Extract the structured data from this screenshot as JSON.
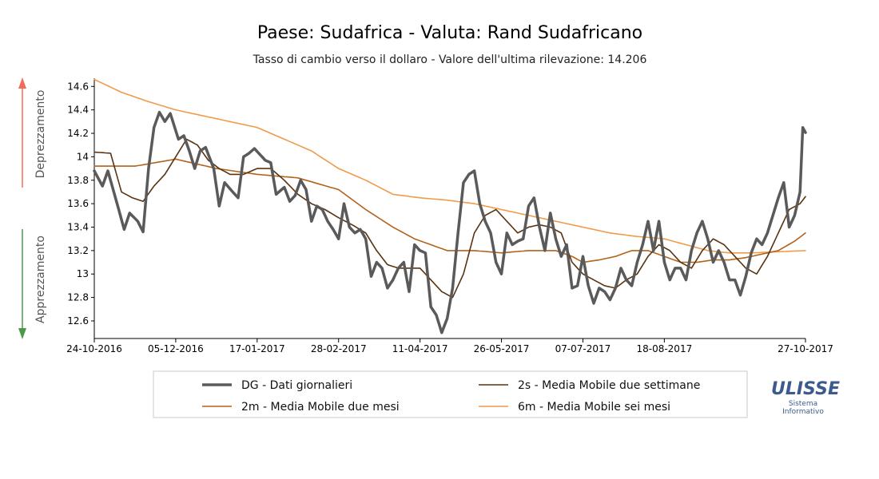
{
  "chart_data": {
    "type": "line",
    "title": "Paese: Sudafrica - Valuta: Rand Sudafricano",
    "subtitle": "Tasso di cambio verso il dollaro - Valore dell'ultima rilevazione: 14.206",
    "ylim": [
      12.45,
      14.67
    ],
    "y_ticks": [
      "14.6",
      "14.4",
      "14.2",
      "14",
      "13.8",
      "13.6",
      "13.4",
      "13.2",
      "13",
      "12.8",
      "12.6"
    ],
    "y_tick_values": [
      14.6,
      14.4,
      14.2,
      14.0,
      13.8,
      13.6,
      13.4,
      13.2,
      13.0,
      12.8,
      12.6
    ],
    "x_ticks": [
      "24-10-2016",
      "05-12-2016",
      "17-01-2017",
      "28-02-2017",
      "11-04-2017",
      "26-05-2017",
      "07-07-2017",
      "18-08-2017",
      "27-10-2017"
    ],
    "x_tick_index": [
      0,
      30,
      60,
      90,
      120,
      150,
      180,
      210,
      262
    ],
    "x_start": "24-10-2016",
    "x_end": "27-10-2017",
    "n_points": 263,
    "series": [
      {
        "key": "dg",
        "name": "DG - Dati giornalieri",
        "color": "#5a5a5a",
        "width": 3.5,
        "anchors": [
          [
            0,
            13.88
          ],
          [
            3,
            13.75
          ],
          [
            5,
            13.88
          ],
          [
            9,
            13.55
          ],
          [
            11,
            13.38
          ],
          [
            13,
            13.52
          ],
          [
            16,
            13.45
          ],
          [
            18,
            13.36
          ],
          [
            20,
            13.9
          ],
          [
            22,
            14.25
          ],
          [
            24,
            14.38
          ],
          [
            26,
            14.3
          ],
          [
            28,
            14.37
          ],
          [
            31,
            14.15
          ],
          [
            33,
            14.18
          ],
          [
            35,
            14.05
          ],
          [
            37,
            13.9
          ],
          [
            39,
            14.05
          ],
          [
            41,
            14.08
          ],
          [
            44,
            13.9
          ],
          [
            46,
            13.58
          ],
          [
            48,
            13.78
          ],
          [
            51,
            13.7
          ],
          [
            53,
            13.65
          ],
          [
            55,
            14.0
          ],
          [
            57,
            14.03
          ],
          [
            59,
            14.07
          ],
          [
            61,
            14.02
          ],
          [
            63,
            13.97
          ],
          [
            65,
            13.95
          ],
          [
            67,
            13.68
          ],
          [
            70,
            13.74
          ],
          [
            72,
            13.62
          ],
          [
            74,
            13.67
          ],
          [
            76,
            13.8
          ],
          [
            78,
            13.72
          ],
          [
            80,
            13.45
          ],
          [
            82,
            13.58
          ],
          [
            84,
            13.55
          ],
          [
            86,
            13.45
          ],
          [
            88,
            13.38
          ],
          [
            90,
            13.3
          ],
          [
            92,
            13.6
          ],
          [
            94,
            13.4
          ],
          [
            96,
            13.35
          ],
          [
            98,
            13.38
          ],
          [
            100,
            13.3
          ],
          [
            102,
            12.98
          ],
          [
            104,
            13.1
          ],
          [
            106,
            13.05
          ],
          [
            108,
            12.88
          ],
          [
            110,
            12.95
          ],
          [
            112,
            13.05
          ],
          [
            114,
            13.1
          ],
          [
            116,
            12.85
          ],
          [
            118,
            13.25
          ],
          [
            120,
            13.2
          ],
          [
            122,
            13.18
          ],
          [
            124,
            12.72
          ],
          [
            126,
            12.65
          ],
          [
            128,
            12.5
          ],
          [
            130,
            12.62
          ],
          [
            132,
            12.88
          ],
          [
            134,
            13.35
          ],
          [
            136,
            13.78
          ],
          [
            138,
            13.85
          ],
          [
            140,
            13.88
          ],
          [
            142,
            13.6
          ],
          [
            144,
            13.45
          ],
          [
            146,
            13.35
          ],
          [
            148,
            13.1
          ],
          [
            150,
            13.0
          ],
          [
            152,
            13.35
          ],
          [
            154,
            13.25
          ],
          [
            156,
            13.28
          ],
          [
            158,
            13.3
          ],
          [
            160,
            13.58
          ],
          [
            162,
            13.65
          ],
          [
            164,
            13.4
          ],
          [
            166,
            13.2
          ],
          [
            168,
            13.52
          ],
          [
            170,
            13.3
          ],
          [
            172,
            13.15
          ],
          [
            174,
            13.25
          ],
          [
            176,
            12.88
          ],
          [
            178,
            12.9
          ],
          [
            180,
            13.15
          ],
          [
            182,
            12.9
          ],
          [
            184,
            12.75
          ],
          [
            186,
            12.88
          ],
          [
            188,
            12.85
          ],
          [
            190,
            12.78
          ],
          [
            192,
            12.88
          ],
          [
            194,
            13.05
          ],
          [
            196,
            12.95
          ],
          [
            198,
            12.9
          ],
          [
            200,
            13.1
          ],
          [
            202,
            13.25
          ],
          [
            204,
            13.45
          ],
          [
            206,
            13.2
          ],
          [
            208,
            13.45
          ],
          [
            210,
            13.1
          ],
          [
            212,
            12.95
          ],
          [
            214,
            13.05
          ],
          [
            216,
            13.05
          ],
          [
            218,
            12.95
          ],
          [
            220,
            13.2
          ],
          [
            222,
            13.35
          ],
          [
            224,
            13.45
          ],
          [
            226,
            13.3
          ],
          [
            228,
            13.1
          ],
          [
            230,
            13.2
          ],
          [
            232,
            13.1
          ],
          [
            234,
            12.95
          ],
          [
            236,
            12.95
          ],
          [
            238,
            12.82
          ],
          [
            240,
            12.98
          ],
          [
            242,
            13.18
          ],
          [
            244,
            13.3
          ],
          [
            246,
            13.25
          ],
          [
            248,
            13.35
          ],
          [
            250,
            13.5
          ],
          [
            252,
            13.65
          ],
          [
            254,
            13.78
          ],
          [
            256,
            13.4
          ],
          [
            258,
            13.5
          ],
          [
            260,
            13.7
          ],
          [
            261,
            14.25
          ],
          [
            262,
            14.206
          ]
        ]
      },
      {
        "key": "ma2s",
        "name": "2s - Media Mobile due settimane",
        "color": "#5a3310",
        "width": 1.6,
        "anchors": [
          [
            0,
            14.04
          ],
          [
            6,
            14.03
          ],
          [
            10,
            13.7
          ],
          [
            14,
            13.65
          ],
          [
            18,
            13.62
          ],
          [
            22,
            13.75
          ],
          [
            26,
            13.85
          ],
          [
            30,
            14.0
          ],
          [
            34,
            14.15
          ],
          [
            38,
            14.1
          ],
          [
            42,
            13.97
          ],
          [
            46,
            13.9
          ],
          [
            50,
            13.85
          ],
          [
            55,
            13.85
          ],
          [
            60,
            13.9
          ],
          [
            65,
            13.9
          ],
          [
            70,
            13.8
          ],
          [
            75,
            13.68
          ],
          [
            80,
            13.6
          ],
          [
            85,
            13.55
          ],
          [
            90,
            13.48
          ],
          [
            95,
            13.42
          ],
          [
            100,
            13.35
          ],
          [
            104,
            13.2
          ],
          [
            108,
            13.08
          ],
          [
            112,
            13.05
          ],
          [
            116,
            13.05
          ],
          [
            120,
            13.05
          ],
          [
            124,
            12.95
          ],
          [
            128,
            12.85
          ],
          [
            132,
            12.8
          ],
          [
            136,
            13.0
          ],
          [
            140,
            13.35
          ],
          [
            144,
            13.5
          ],
          [
            148,
            13.55
          ],
          [
            152,
            13.45
          ],
          [
            156,
            13.35
          ],
          [
            160,
            13.4
          ],
          [
            164,
            13.42
          ],
          [
            168,
            13.4
          ],
          [
            172,
            13.35
          ],
          [
            176,
            13.1
          ],
          [
            180,
            13.0
          ],
          [
            184,
            12.95
          ],
          [
            188,
            12.9
          ],
          [
            192,
            12.88
          ],
          [
            196,
            12.95
          ],
          [
            200,
            13.0
          ],
          [
            204,
            13.15
          ],
          [
            208,
            13.25
          ],
          [
            212,
            13.2
          ],
          [
            216,
            13.1
          ],
          [
            220,
            13.05
          ],
          [
            224,
            13.2
          ],
          [
            228,
            13.3
          ],
          [
            232,
            13.25
          ],
          [
            236,
            13.15
          ],
          [
            240,
            13.05
          ],
          [
            244,
            13.0
          ],
          [
            248,
            13.15
          ],
          [
            252,
            13.35
          ],
          [
            256,
            13.55
          ],
          [
            260,
            13.6
          ],
          [
            262,
            13.66
          ]
        ]
      },
      {
        "key": "ma2m",
        "name": "2m - Media Mobile due mesi",
        "color": "#b3621a",
        "width": 1.6,
        "anchors": [
          [
            0,
            13.92
          ],
          [
            15,
            13.92
          ],
          [
            30,
            13.98
          ],
          [
            45,
            13.9
          ],
          [
            60,
            13.85
          ],
          [
            75,
            13.82
          ],
          [
            90,
            13.72
          ],
          [
            100,
            13.55
          ],
          [
            110,
            13.4
          ],
          [
            118,
            13.3
          ],
          [
            124,
            13.25
          ],
          [
            130,
            13.2
          ],
          [
            140,
            13.2
          ],
          [
            150,
            13.18
          ],
          [
            160,
            13.2
          ],
          [
            170,
            13.2
          ],
          [
            176,
            13.15
          ],
          [
            180,
            13.1
          ],
          [
            186,
            13.12
          ],
          [
            192,
            13.15
          ],
          [
            198,
            13.2
          ],
          [
            204,
            13.2
          ],
          [
            210,
            13.15
          ],
          [
            216,
            13.1
          ],
          [
            222,
            13.1
          ],
          [
            228,
            13.12
          ],
          [
            234,
            13.12
          ],
          [
            240,
            13.14
          ],
          [
            246,
            13.17
          ],
          [
            252,
            13.2
          ],
          [
            258,
            13.28
          ],
          [
            262,
            13.35
          ]
        ]
      },
      {
        "key": "ma6m",
        "name": "6m - Media Mobile sei mesi",
        "color": "#f09a4a",
        "width": 1.6,
        "anchors": [
          [
            0,
            14.66
          ],
          [
            10,
            14.55
          ],
          [
            20,
            14.47
          ],
          [
            30,
            14.4
          ],
          [
            40,
            14.35
          ],
          [
            50,
            14.3
          ],
          [
            60,
            14.25
          ],
          [
            70,
            14.15
          ],
          [
            80,
            14.05
          ],
          [
            90,
            13.9
          ],
          [
            100,
            13.8
          ],
          [
            110,
            13.68
          ],
          [
            120,
            13.65
          ],
          [
            130,
            13.63
          ],
          [
            140,
            13.6
          ],
          [
            150,
            13.55
          ],
          [
            160,
            13.5
          ],
          [
            170,
            13.45
          ],
          [
            180,
            13.4
          ],
          [
            190,
            13.35
          ],
          [
            200,
            13.32
          ],
          [
            210,
            13.3
          ],
          [
            218,
            13.25
          ],
          [
            226,
            13.2
          ],
          [
            234,
            13.18
          ],
          [
            242,
            13.18
          ],
          [
            252,
            13.19
          ],
          [
            262,
            13.2
          ]
        ]
      }
    ],
    "side_labels": {
      "top": "Deprezzamento",
      "bottom": "Apprezzamento"
    },
    "arrow_colors": {
      "up": "#f26b5b",
      "down": "#4a9a4a"
    },
    "legend_placement": "bottom-center",
    "grid": false
  },
  "logo": {
    "text": "ULISSE",
    "sub1": "Sistema",
    "sub2": "Informativo"
  }
}
